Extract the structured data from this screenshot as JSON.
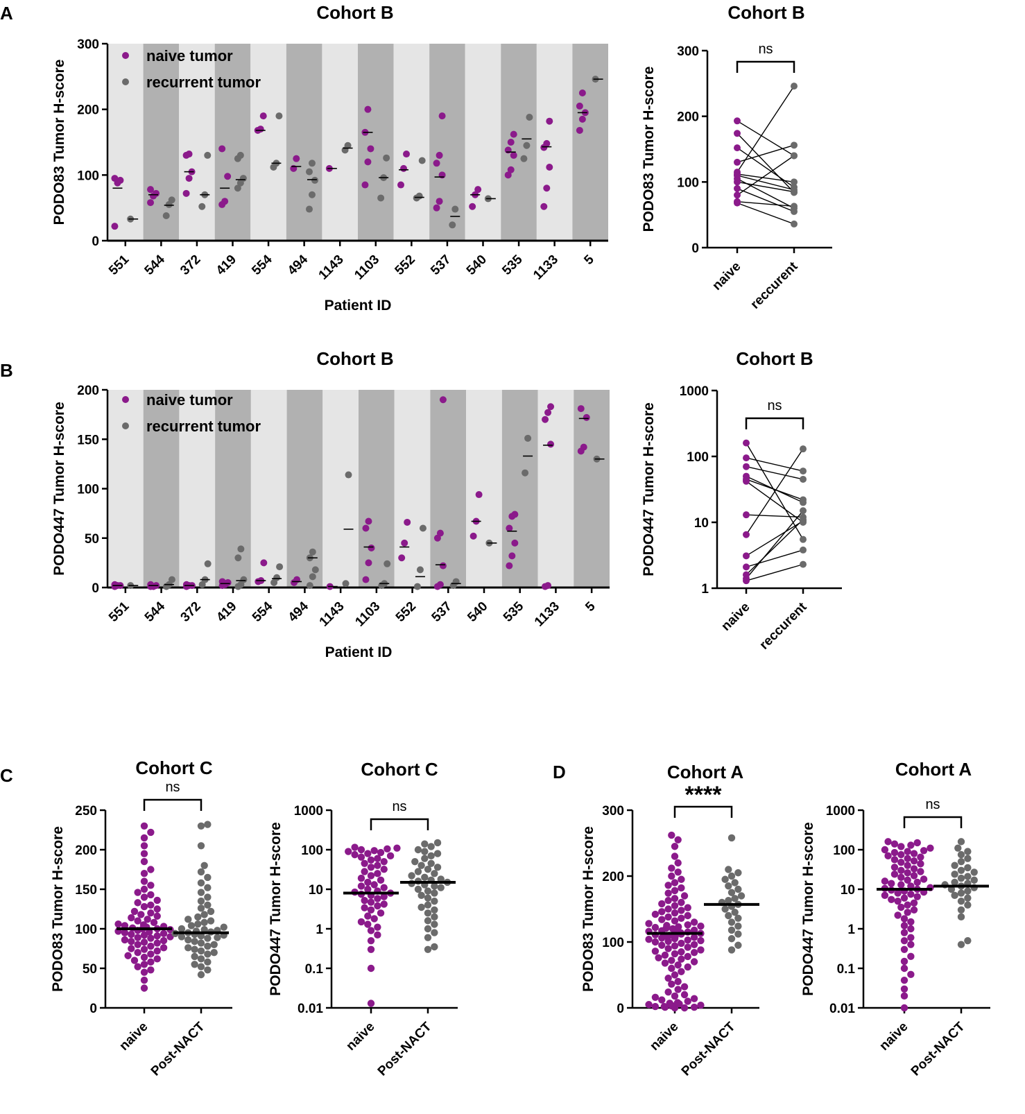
{
  "colors": {
    "naive": "#8b1a8b",
    "recurrent": "#6b6b6b",
    "bandLight": "#e5e5e5",
    "bandDark": "#b1b1b1",
    "axis": "#000000",
    "pairLine": "#000000"
  },
  "panel_labels": {
    "A": "A",
    "B": "B",
    "C": "C",
    "D": "D"
  },
  "chart_data": [
    {
      "id": "A1",
      "type": "scatter",
      "title": "Cohort B",
      "ylabel": "PODO83 Tumor H-score",
      "xlabel": "Patient  ID",
      "ylim": [
        0,
        300
      ],
      "yticks": [
        0,
        100,
        200,
        300
      ],
      "legend": {
        "position": "top-left",
        "entries": [
          "naive tumor",
          "recurrent tumor"
        ]
      },
      "categories": [
        "551",
        "544",
        "372",
        "419",
        "554",
        "494",
        "1143",
        "1103",
        "552",
        "537",
        "540",
        "535",
        "1133",
        "5"
      ],
      "naive": [
        [
          22,
          88,
          92,
          95
        ],
        [
          58,
          68,
          72,
          78
        ],
        [
          72,
          95,
          105,
          130,
          132
        ],
        [
          55,
          60,
          98,
          140
        ],
        [
          168,
          170,
          190
        ],
        [
          110,
          125
        ],
        [
          110
        ],
        [
          85,
          120,
          140,
          165,
          200
        ],
        [
          85,
          110,
          132
        ],
        [
          50,
          60,
          100,
          118,
          130,
          190
        ],
        [
          52,
          70,
          78
        ],
        [
          100,
          108,
          130,
          138,
          150,
          162
        ],
        [
          52,
          80,
          112,
          142,
          148,
          182
        ],
        [
          168,
          185,
          195,
          205,
          225
        ]
      ],
      "recurrent": [
        [
          33
        ],
        [
          38,
          55,
          62
        ],
        [
          52,
          70,
          130
        ],
        [
          80,
          88,
          95,
          125,
          130
        ],
        [
          112,
          118,
          190
        ],
        [
          48,
          70,
          92,
          105,
          118
        ],
        [
          138,
          145
        ],
        [
          65,
          96,
          126
        ],
        [
          65,
          68,
          122
        ],
        [
          24,
          48
        ],
        [
          64
        ],
        [
          125,
          145,
          188
        ],
        [],
        [
          246
        ]
      ],
      "naive_median": [
        80,
        70,
        105,
        80,
        168,
        113,
        110,
        165,
        108,
        97,
        70,
        135,
        143,
        195
      ],
      "recurrent_median": [
        33,
        54,
        70,
        93,
        118,
        93,
        141,
        96,
        66,
        37,
        64,
        155,
        null,
        246
      ]
    },
    {
      "id": "A2",
      "type": "scatter",
      "title": "Cohort B",
      "ylabel": "PODO83 Tumor H-score",
      "ylim": [
        0,
        300
      ],
      "yticks": [
        0,
        100,
        200,
        300
      ],
      "categories": [
        "naive",
        "reccurent"
      ],
      "significance": "ns",
      "pairs": [
        [
          193,
          140
        ],
        [
          174,
          84
        ],
        [
          152,
          92
        ],
        [
          130,
          156
        ],
        [
          115,
          246
        ],
        [
          112,
          100
        ],
        [
          110,
          88
        ],
        [
          105,
          60
        ],
        [
          100,
          85
        ],
        [
          90,
          55
        ],
        [
          80,
          140
        ],
        [
          70,
          63
        ],
        [
          68,
          36
        ]
      ]
    },
    {
      "id": "B1",
      "type": "scatter",
      "title": "Cohort B",
      "ylabel": "PODO447 Tumor H-score",
      "xlabel": "Patient  ID",
      "ylim": [
        0,
        200
      ],
      "yticks": [
        0,
        50,
        100,
        150,
        200
      ],
      "legend": {
        "position": "top-left",
        "entries": [
          "naive tumor",
          "recurrent tumor"
        ]
      },
      "categories": [
        "551",
        "544",
        "372",
        "419",
        "554",
        "494",
        "1143",
        "1103",
        "552",
        "537",
        "540",
        "535",
        "1133",
        "5"
      ],
      "naive": [
        [
          1,
          2,
          2,
          3
        ],
        [
          1,
          1,
          2,
          3
        ],
        [
          1,
          2,
          2,
          3
        ],
        [
          2,
          3,
          5,
          6
        ],
        [
          6,
          7,
          25
        ],
        [
          5,
          8
        ],
        [
          1
        ],
        [
          8,
          25,
          40,
          60,
          67
        ],
        [
          30,
          45,
          66
        ],
        [
          1,
          3,
          22,
          50,
          55,
          190
        ],
        [
          52,
          67,
          94
        ],
        [
          22,
          32,
          45,
          60,
          72,
          74
        ],
        [
          1,
          2,
          145,
          170,
          177,
          183
        ],
        [
          138,
          142,
          172,
          181
        ]
      ],
      "recurrent": [
        [
          2
        ],
        [
          1,
          3,
          8
        ],
        [
          3,
          8,
          24
        ],
        [
          1,
          3,
          8,
          30,
          39
        ],
        [
          5,
          10,
          21
        ],
        [
          2,
          11,
          18,
          30,
          36
        ],
        [
          4,
          114
        ],
        [
          2,
          4,
          24
        ],
        [
          1,
          18,
          60
        ],
        [
          2,
          6
        ],
        [
          45
        ],
        [
          116,
          151
        ],
        [],
        [
          130
        ]
      ],
      "naive_median": [
        2,
        2,
        2,
        4,
        7,
        6,
        1,
        41,
        41,
        23,
        67,
        57,
        144,
        171
      ],
      "recurrent_median": [
        2,
        3,
        8,
        7,
        9,
        30,
        59,
        4,
        11,
        4,
        45,
        133,
        null,
        130
      ]
    },
    {
      "id": "B2",
      "type": "scatter",
      "title": "Cohort B",
      "ylabel": "PODO447 Tumor H-score",
      "ylim": [
        1,
        1000
      ],
      "scale": "log",
      "yticks": [
        1,
        10,
        100,
        1000
      ],
      "categories": [
        "naive",
        "reccurent"
      ],
      "significance": "ns",
      "pairs": [
        [
          160,
          5.5
        ],
        [
          95,
          60
        ],
        [
          70,
          45
        ],
        [
          50,
          20
        ],
        [
          45,
          22
        ],
        [
          42,
          10
        ],
        [
          13,
          12
        ],
        [
          6.5,
          130
        ],
        [
          3.1,
          10.5
        ],
        [
          2.1,
          3.8
        ],
        [
          1.6,
          11
        ],
        [
          1.4,
          15
        ],
        [
          1.3,
          2.3
        ]
      ]
    },
    {
      "id": "C1",
      "type": "scatter",
      "title": "Cohort C",
      "ylabel": "PODO83 Tumor H-score",
      "ylim": [
        0,
        250
      ],
      "yticks": [
        0,
        50,
        100,
        150,
        200,
        250
      ],
      "categories": [
        "naive",
        "Post-NACT"
      ],
      "significance": "ns",
      "medians": [
        100,
        95
      ],
      "groups": [
        [
          25,
          35,
          45,
          48,
          52,
          55,
          58,
          60,
          62,
          64,
          66,
          68,
          70,
          72,
          74,
          75,
          76,
          78,
          80,
          82,
          83,
          84,
          85,
          86,
          88,
          89,
          90,
          91,
          92,
          93,
          94,
          95,
          96,
          97,
          98,
          99,
          100,
          100,
          101,
          102,
          103,
          104,
          105,
          106,
          108,
          110,
          112,
          114,
          116,
          118,
          120,
          122,
          125,
          128,
          130,
          133,
          136,
          140,
          143,
          146,
          150,
          155,
          160,
          170,
          175,
          185,
          195,
          205,
          215,
          222,
          230
        ],
        [
          42,
          48,
          52,
          55,
          58,
          62,
          65,
          68,
          70,
          72,
          74,
          76,
          78,
          80,
          82,
          84,
          86,
          88,
          89,
          90,
          91,
          92,
          93,
          94,
          95,
          96,
          97,
          98,
          99,
          100,
          102,
          104,
          106,
          108,
          110,
          112,
          115,
          118,
          122,
          126,
          130,
          135,
          140,
          146,
          152,
          158,
          165,
          172,
          180,
          205,
          230,
          232
        ]
      ]
    },
    {
      "id": "C2",
      "type": "scatter",
      "title": "Cohort C",
      "ylabel": "PODO447 Tumor H-score",
      "ylim": [
        0.01,
        1000
      ],
      "scale": "log",
      "yticks": [
        0.01,
        0.1,
        1,
        10,
        100,
        1000
      ],
      "categories": [
        "naive",
        "Post-NACT"
      ],
      "significance": "ns",
      "medians": [
        8,
        15
      ],
      "groups": [
        [
          0.013,
          0.1,
          0.3,
          0.5,
          0.7,
          0.9,
          1.1,
          1.3,
          1.5,
          1.8,
          2.1,
          2.5,
          3,
          3.4,
          3.8,
          4.2,
          4.7,
          5.2,
          5.8,
          6.5,
          7,
          7.5,
          8,
          8.5,
          9,
          10,
          11,
          12,
          13,
          15,
          17,
          19,
          22,
          25,
          28,
          32,
          36,
          40,
          45,
          50,
          55,
          60,
          65,
          70,
          75,
          80,
          85,
          90,
          95,
          100,
          105,
          110,
          115
        ],
        [
          0.3,
          0.35,
          0.6,
          0.8,
          1,
          1.3,
          1.6,
          2,
          2.5,
          3,
          3.5,
          4,
          5,
          6,
          7,
          8,
          9,
          10,
          11,
          12,
          13,
          14,
          15,
          16,
          17,
          18,
          20,
          22,
          25,
          28,
          32,
          36,
          40,
          45,
          50,
          60,
          70,
          80,
          90,
          100,
          120,
          140,
          150
        ]
      ]
    },
    {
      "id": "D1",
      "type": "scatter",
      "title": "Cohort A",
      "ylabel": "PODO83 Tumor H-score",
      "ylim": [
        0,
        300
      ],
      "yticks": [
        0,
        100,
        200,
        300
      ],
      "categories": [
        "naive",
        "Post-NACT"
      ],
      "significance": "****",
      "medians": [
        113,
        157
      ],
      "groups": [
        [
          0,
          0,
          1,
          1,
          2,
          2,
          3,
          3,
          4,
          5,
          6,
          7,
          8,
          10,
          12,
          14,
          16,
          18,
          20,
          24,
          28,
          32,
          36,
          40,
          45,
          50,
          55,
          60,
          62,
          65,
          68,
          70,
          72,
          74,
          76,
          78,
          80,
          82,
          84,
          85,
          86,
          88,
          90,
          92,
          94,
          95,
          96,
          98,
          100,
          101,
          102,
          103,
          104,
          105,
          106,
          107,
          108,
          109,
          110,
          111,
          112,
          113,
          114,
          115,
          116,
          117,
          118,
          119,
          120,
          121,
          122,
          123,
          124,
          125,
          126,
          128,
          130,
          132,
          134,
          136,
          138,
          140,
          142,
          144,
          146,
          148,
          150,
          152,
          155,
          158,
          160,
          163,
          166,
          170,
          174,
          178,
          182,
          186,
          190,
          195,
          200,
          206,
          212,
          220,
          230,
          245,
          255,
          262
        ],
        [
          88,
          95,
          105,
          112,
          118,
          124,
          130,
          136,
          140,
          145,
          150,
          154,
          157,
          160,
          163,
          166,
          170,
          175,
          180,
          185,
          190,
          195,
          200,
          205,
          210,
          258
        ]
      ]
    },
    {
      "id": "D2",
      "type": "scatter",
      "title": "Cohort A",
      "ylabel": "PODO447 Tumor H-score",
      "ylim": [
        0.01,
        1000
      ],
      "scale": "log",
      "yticks": [
        0.01,
        0.1,
        1,
        10,
        100,
        1000
      ],
      "categories": [
        "naive",
        "Post-NACT"
      ],
      "significance": "ns",
      "medians": [
        10,
        12
      ],
      "groups": [
        [
          0.01,
          0.02,
          0.03,
          0.05,
          0.07,
          0.1,
          0.15,
          0.2,
          0.3,
          0.4,
          0.5,
          0.6,
          0.8,
          1,
          1.2,
          1.5,
          1.8,
          2.2,
          2.6,
          3,
          3.5,
          4,
          4.5,
          5,
          5.5,
          6,
          6.5,
          7,
          7.5,
          8,
          8.5,
          9,
          9.5,
          10,
          10.5,
          11,
          12,
          13,
          14,
          15,
          16,
          17,
          18,
          20,
          22,
          24,
          26,
          28,
          30,
          33,
          36,
          40,
          44,
          48,
          52,
          56,
          60,
          65,
          70,
          75,
          80,
          85,
          90,
          95,
          100,
          110,
          120,
          130,
          140,
          150,
          160
        ],
        [
          0.4,
          0.5,
          2,
          3,
          4,
          5,
          6,
          7,
          8,
          9,
          10,
          11,
          12,
          13,
          14,
          15,
          17,
          19,
          21,
          24,
          27,
          30,
          35,
          40,
          50,
          60,
          75,
          90,
          110,
          160
        ]
      ]
    }
  ]
}
